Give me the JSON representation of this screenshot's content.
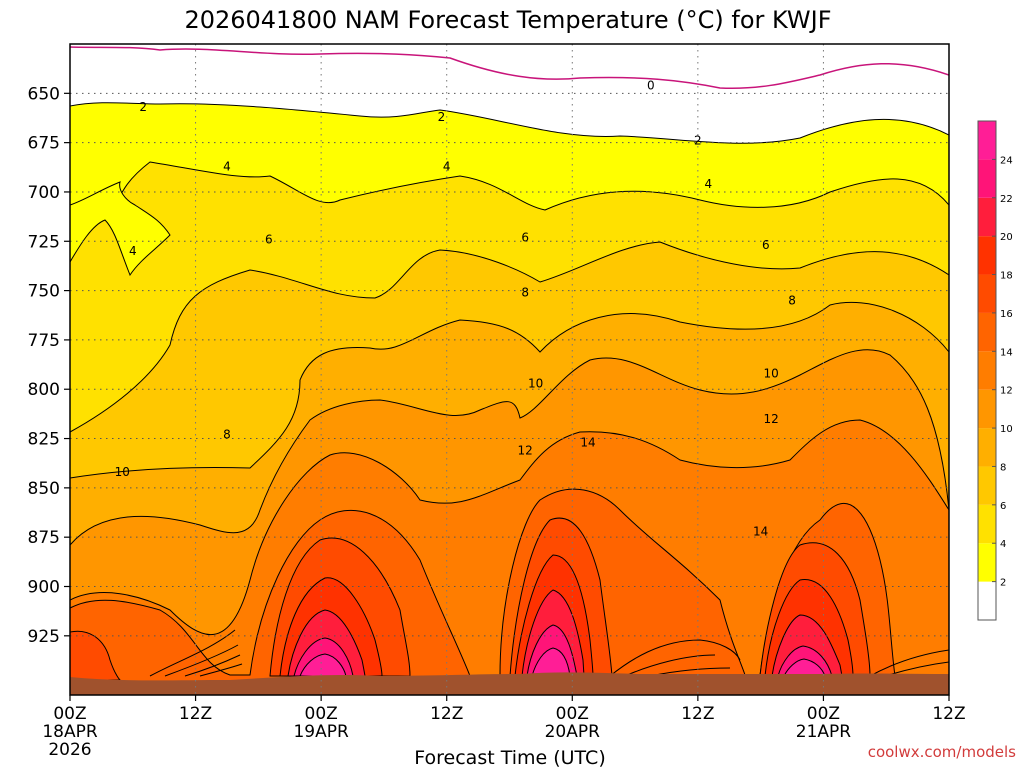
{
  "chart_data": {
    "type": "heatmap",
    "title": "2026041800 NAM Forecast Temperature (°C) for KWJF",
    "xlabel": "Forecast Time (UTC)",
    "ylabel": "",
    "y_ticks": [
      650,
      675,
      700,
      725,
      750,
      775,
      800,
      825,
      850,
      875,
      900,
      925
    ],
    "ylim": [
      955,
      625
    ],
    "x_ticks": [
      {
        "hour": 0,
        "line1": "00Z",
        "line2": "18APR",
        "line3": "2026"
      },
      {
        "hour": 12,
        "line1": "12Z",
        "line2": "",
        "line3": ""
      },
      {
        "hour": 24,
        "line1": "00Z",
        "line2": "19APR",
        "line3": ""
      },
      {
        "hour": 36,
        "line1": "12Z",
        "line2": "",
        "line3": ""
      },
      {
        "hour": 48,
        "line1": "00Z",
        "line2": "20APR",
        "line3": ""
      },
      {
        "hour": 60,
        "line1": "12Z",
        "line2": "",
        "line3": ""
      },
      {
        "hour": 72,
        "line1": "00Z",
        "line2": "21APR",
        "line3": ""
      },
      {
        "hour": 84,
        "line1": "12Z",
        "line2": "",
        "line3": ""
      }
    ],
    "xlim": [
      0,
      84
    ],
    "colorbar": {
      "levels": [
        2,
        4,
        6,
        8,
        10,
        12,
        14,
        16,
        18,
        20,
        22,
        24
      ],
      "colors": [
        "#ffffff",
        "#ffff00",
        "#ffe100",
        "#ffc800",
        "#ffaf00",
        "#ff9600",
        "#ff7d00",
        "#ff6400",
        "#ff4b00",
        "#ff3200",
        "#ff1e3c",
        "#ff1478",
        "#ff1e96"
      ],
      "zero_line_color": "#c8147a"
    },
    "contour_labels": [
      {
        "text": "0",
        "hour": 55.5,
        "p": 646
      },
      {
        "text": "2",
        "hour": 7.0,
        "p": 657
      },
      {
        "text": "2",
        "hour": 35.5,
        "p": 662
      },
      {
        "text": "2",
        "hour": 60.0,
        "p": 674
      },
      {
        "text": "4",
        "hour": 15.0,
        "p": 687
      },
      {
        "text": "4",
        "hour": 36.0,
        "p": 687
      },
      {
        "text": "4",
        "hour": 61.0,
        "p": 696
      },
      {
        "text": "4",
        "hour": 6.0,
        "p": 730
      },
      {
        "text": "6",
        "hour": 19.0,
        "p": 724
      },
      {
        "text": "6",
        "hour": 43.5,
        "p": 723
      },
      {
        "text": "6",
        "hour": 66.5,
        "p": 727
      },
      {
        "text": "8",
        "hour": 43.5,
        "p": 751
      },
      {
        "text": "8",
        "hour": 69.0,
        "p": 755
      },
      {
        "text": "8",
        "hour": 15.0,
        "p": 823
      },
      {
        "text": "10",
        "hour": 44.5,
        "p": 797
      },
      {
        "text": "10",
        "hour": 67.0,
        "p": 792
      },
      {
        "text": "10",
        "hour": 5.0,
        "p": 842
      },
      {
        "text": "12",
        "hour": 67.0,
        "p": 815
      },
      {
        "text": "12",
        "hour": 43.5,
        "p": 831
      },
      {
        "text": "14",
        "hour": 49.5,
        "p": 827
      },
      {
        "text": "14",
        "hour": 66.0,
        "p": 872
      }
    ],
    "grid": true,
    "surface_color": "#a0522d",
    "credit": "coolwx.com/models"
  }
}
